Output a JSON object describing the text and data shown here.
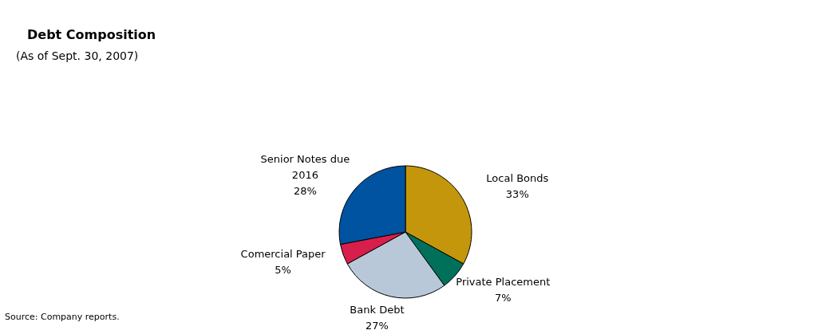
{
  "chart_data": {
    "type": "pie",
    "title": "Debt Composition",
    "subtitle": "(As of Sept. 30, 2007)",
    "annotations": [
      "Source:  Company reports."
    ],
    "categories": [
      "Local  Bonds",
      "Private Placement",
      "Bank Debt",
      "Comercial Paper",
      "Senior Notes due 2016"
    ],
    "values": [
      33,
      7,
      27,
      5,
      28
    ],
    "value_labels": [
      "33%",
      "7%",
      "27%",
      "5%",
      "28%"
    ],
    "colors": [
      "#c4960c",
      "#00705a",
      "#b8c8d8",
      "#d81e4a",
      "#0053a0"
    ]
  }
}
